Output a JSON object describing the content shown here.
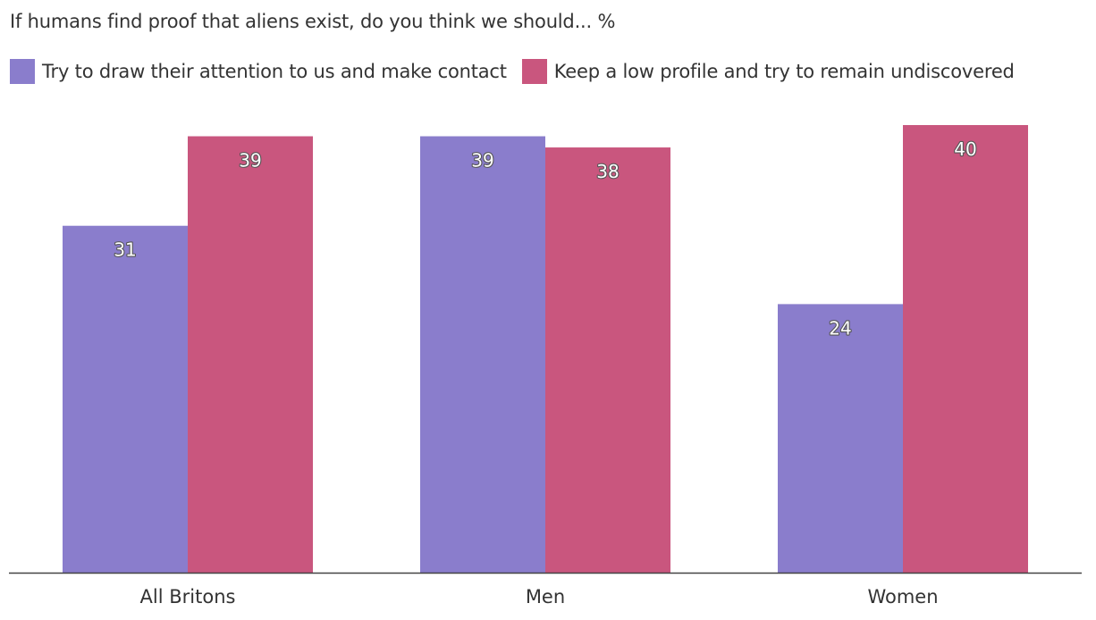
{
  "chart_data": {
    "type": "bar",
    "title": "If humans find proof that aliens exist, do you think we should... %",
    "categories": [
      "All Britons",
      "Men",
      "Women"
    ],
    "series": [
      {
        "name": "Try to draw their attention to us and make contact",
        "color": "#8a7dcc",
        "values": [
          31,
          39,
          24
        ]
      },
      {
        "name": "Keep a low profile and try to remain undiscovered",
        "color": "#c9567e",
        "values": [
          39,
          38,
          40
        ]
      }
    ],
    "ylim": [
      0,
      40
    ],
    "grid": false,
    "legend": "top-left",
    "data_labels": true
  }
}
